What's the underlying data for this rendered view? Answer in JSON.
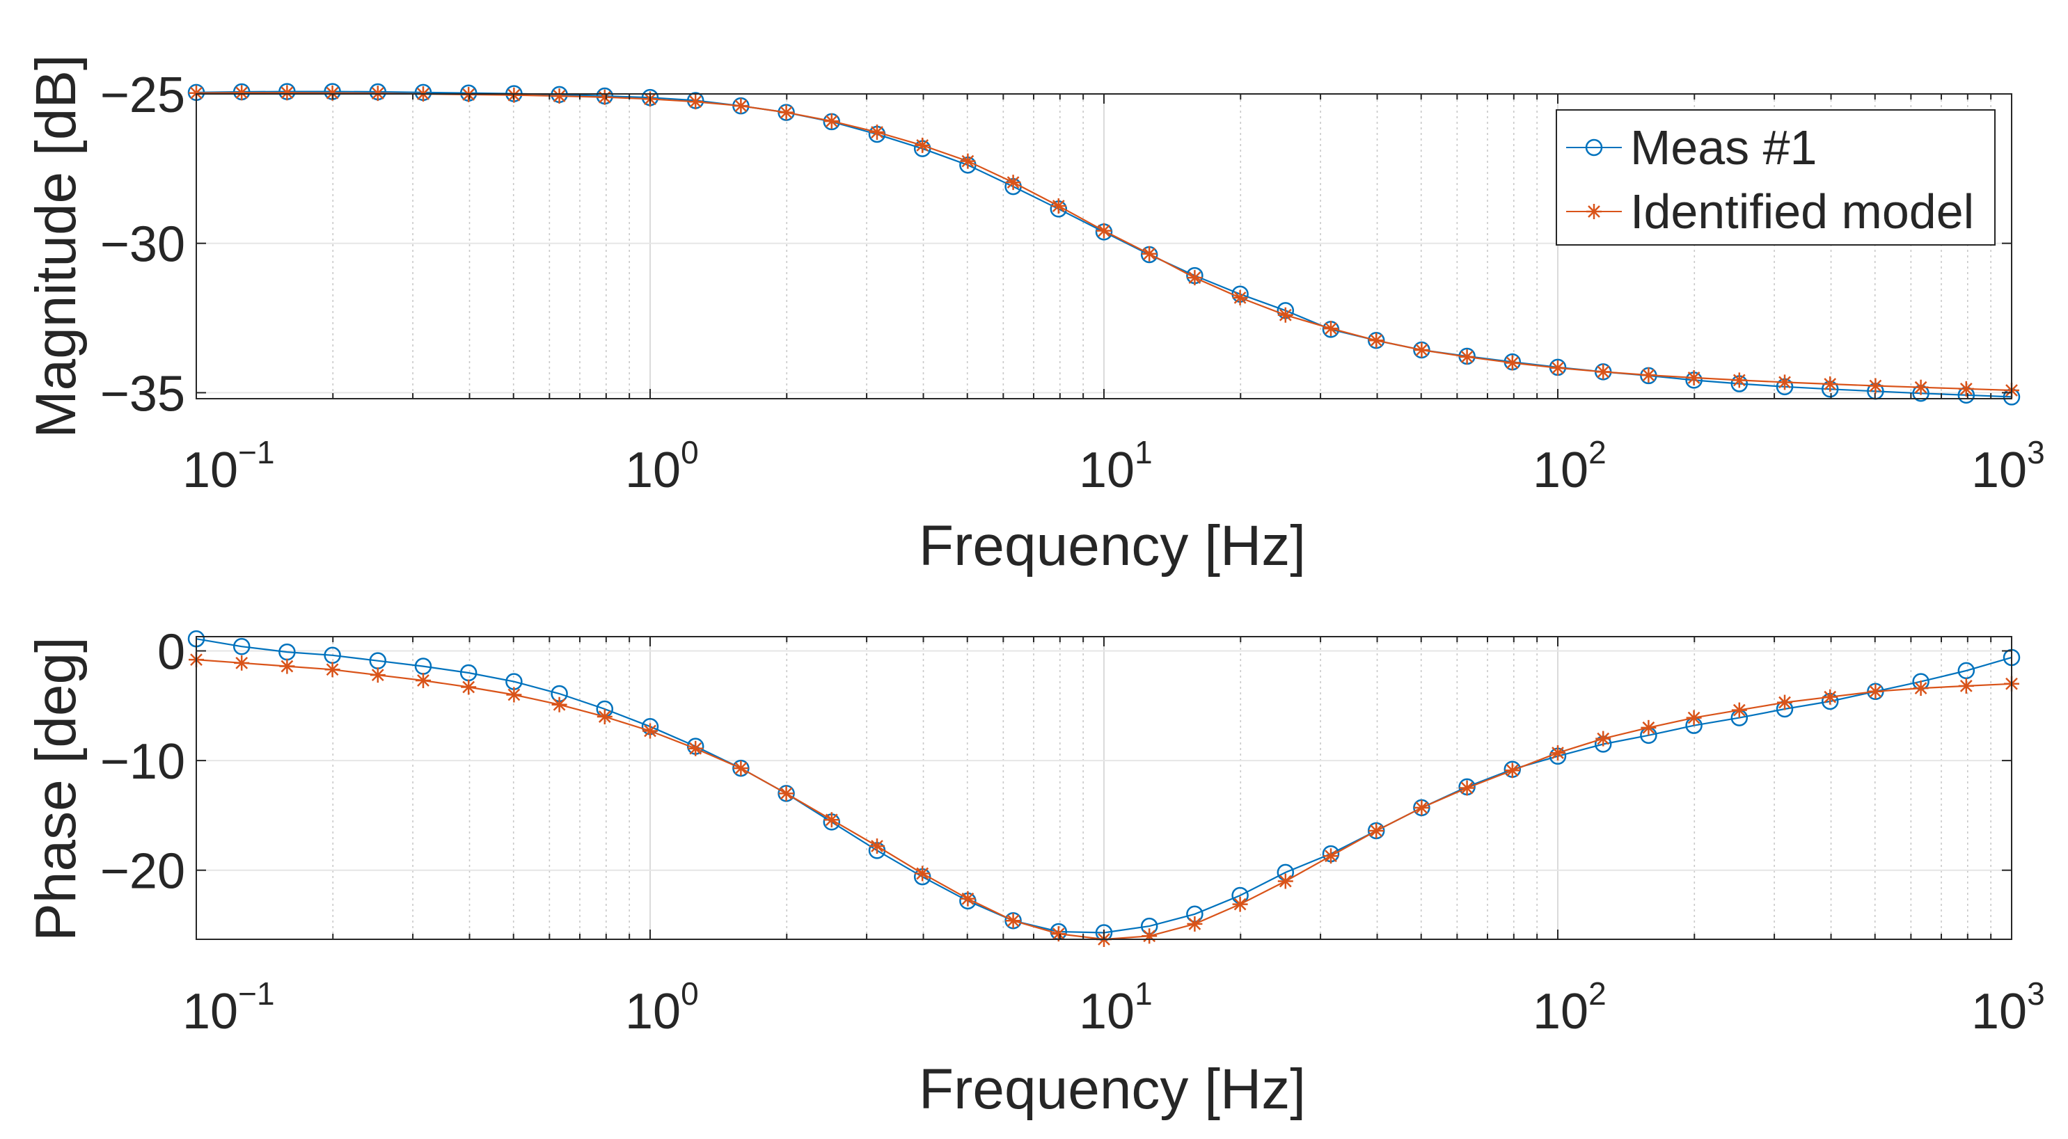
{
  "chart_data": [
    {
      "type": "line",
      "name": "magnitude",
      "xlabel": "Frequency [Hz]",
      "ylabel": "Magnitude [dB]",
      "xscale": "log",
      "xlim": [
        0.1,
        1000
      ],
      "ylim": [
        -35.2,
        -25
      ],
      "xticks": [
        {
          "base": "10",
          "exp": "−1"
        },
        {
          "base": "10",
          "exp": "0"
        },
        {
          "base": "10",
          "exp": "1"
        },
        {
          "base": "10",
          "exp": "2"
        },
        {
          "base": "10",
          "exp": "3"
        }
      ],
      "yticks": [
        {
          "value": -25,
          "label": "−25"
        },
        {
          "value": -30,
          "label": "−30"
        },
        {
          "value": -35,
          "label": "−35"
        }
      ],
      "grid": true,
      "legend": {
        "position": "top-right",
        "entries": [
          "Meas #1",
          "Identified model"
        ]
      },
      "series": [
        {
          "name": "Meas #1",
          "marker": "circle",
          "color": "#0072BD",
          "values": [
            -24.95,
            -24.93,
            -24.92,
            -24.92,
            -24.93,
            -24.95,
            -24.97,
            -24.99,
            -25.02,
            -25.07,
            -25.12,
            -25.22,
            -25.4,
            -25.62,
            -25.93,
            -26.35,
            -26.83,
            -27.38,
            -28.1,
            -28.85,
            -29.62,
            -30.38,
            -31.08,
            -31.7,
            -32.25,
            -32.88,
            -33.25,
            -33.57,
            -33.78,
            -33.97,
            -34.15,
            -34.3,
            -34.43,
            -34.58,
            -34.7,
            -34.8,
            -34.88,
            -34.95,
            -35.02,
            -35.08,
            -35.14
          ]
        },
        {
          "name": "Identified model",
          "marker": "asterisk",
          "color": "#D95319",
          "values": [
            -24.97,
            -24.96,
            -24.96,
            -24.97,
            -24.98,
            -25.0,
            -25.02,
            -25.04,
            -25.07,
            -25.11,
            -25.17,
            -25.26,
            -25.4,
            -25.62,
            -25.91,
            -26.28,
            -26.72,
            -27.25,
            -27.96,
            -28.75,
            -29.58,
            -30.35,
            -31.15,
            -31.82,
            -32.4,
            -32.85,
            -33.25,
            -33.57,
            -33.8,
            -34.0,
            -34.17,
            -34.3,
            -34.41,
            -34.5,
            -34.58,
            -34.65,
            -34.71,
            -34.77,
            -34.82,
            -34.87,
            -34.92
          ]
        }
      ]
    },
    {
      "type": "line",
      "name": "phase",
      "xlabel": "Frequency [Hz]",
      "ylabel": "Phase [deg]",
      "xscale": "log",
      "xlim": [
        0.1,
        1000
      ],
      "ylim": [
        -26.3,
        1.3
      ],
      "xticks": [
        {
          "base": "10",
          "exp": "−1"
        },
        {
          "base": "10",
          "exp": "0"
        },
        {
          "base": "10",
          "exp": "1"
        },
        {
          "base": "10",
          "exp": "2"
        },
        {
          "base": "10",
          "exp": "3"
        }
      ],
      "yticks": [
        {
          "value": 0,
          "label": "0"
        },
        {
          "value": -10,
          "label": "−10"
        },
        {
          "value": -20,
          "label": "−20"
        }
      ],
      "grid": true,
      "series": [
        {
          "name": "Meas #1",
          "marker": "circle",
          "color": "#0072BD",
          "values": [
            1.1,
            0.4,
            -0.1,
            -0.4,
            -0.9,
            -1.4,
            -2.0,
            -2.8,
            -3.9,
            -5.3,
            -6.9,
            -8.7,
            -10.7,
            -13.0,
            -15.6,
            -18.2,
            -20.6,
            -22.8,
            -24.6,
            -25.6,
            -25.7,
            -25.1,
            -24.0,
            -22.3,
            -20.2,
            -18.5,
            -16.4,
            -14.3,
            -12.4,
            -10.8,
            -9.6,
            -8.5,
            -7.7,
            -6.8,
            -6.1,
            -5.3,
            -4.6,
            -3.7,
            -2.8,
            -1.8,
            -0.6
          ]
        },
        {
          "name": "Identified model",
          "marker": "asterisk",
          "color": "#D95319",
          "values": [
            -0.8,
            -1.1,
            -1.4,
            -1.7,
            -2.2,
            -2.7,
            -3.3,
            -4.0,
            -4.9,
            -6.0,
            -7.3,
            -8.9,
            -10.7,
            -13.0,
            -15.4,
            -17.8,
            -20.3,
            -22.6,
            -24.6,
            -25.8,
            -26.3,
            -26.0,
            -24.9,
            -23.1,
            -21.0,
            -18.7,
            -16.4,
            -14.3,
            -12.5,
            -10.9,
            -9.3,
            -8.0,
            -7.0,
            -6.1,
            -5.4,
            -4.7,
            -4.2,
            -3.7,
            -3.4,
            -3.2,
            -3.0
          ]
        }
      ]
    }
  ]
}
